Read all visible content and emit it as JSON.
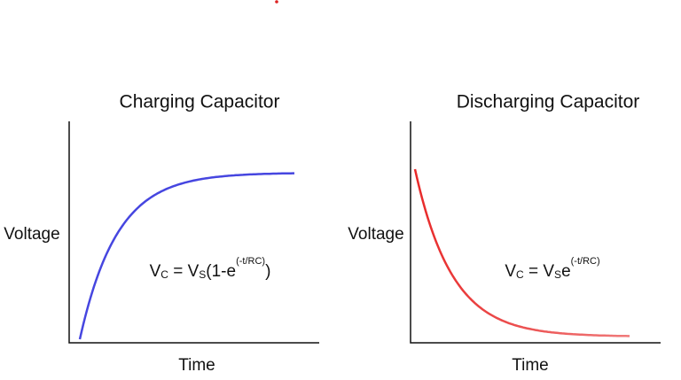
{
  "charts": [
    {
      "title": "Charging Capacitor",
      "y_label": "Voltage",
      "x_label": "Time",
      "formula": [
        {
          "text": "V"
        },
        {
          "sub": "C"
        },
        {
          "text": " = V"
        },
        {
          "sub": "S"
        },
        {
          "text": "(1-e"
        },
        {
          "sup": "(-t/RC)"
        },
        {
          "text": ")"
        }
      ]
    },
    {
      "title": "Discharging Capacitor",
      "y_label": "Voltage",
      "x_label": "Time",
      "formula": [
        {
          "text": "V"
        },
        {
          "sub": "C"
        },
        {
          "text": " = V"
        },
        {
          "sub": "S"
        },
        {
          "text": "e"
        },
        {
          "sup": "(-t/RC)"
        }
      ]
    }
  ]
}
